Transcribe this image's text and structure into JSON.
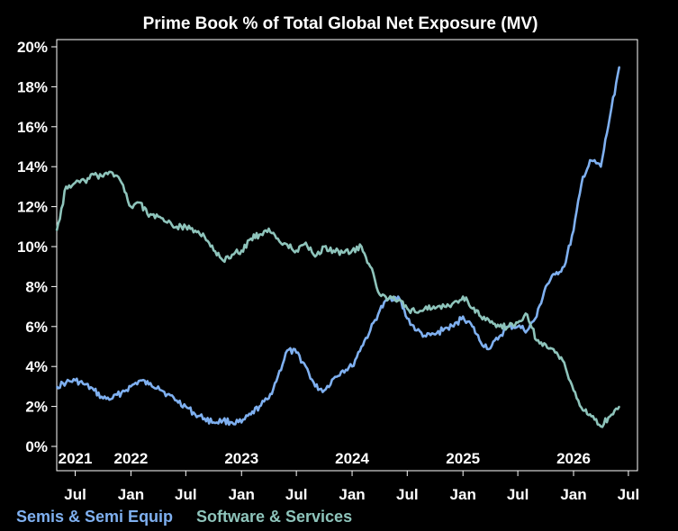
{
  "chart_data": {
    "type": "line",
    "title": "Prime Book % of Total Global Net Exposure (MV)",
    "xlabel": "",
    "ylabel": "",
    "x_range": [
      "2021-05-01",
      "2026-07-31"
    ],
    "ylim": [
      0,
      20
    ],
    "y_ticks": [
      0,
      2,
      4,
      6,
      8,
      10,
      12,
      14,
      16,
      18,
      20
    ],
    "y_tick_labels": [
      "0%",
      "2%",
      "4%",
      "6%",
      "8%",
      "10%",
      "12%",
      "14%",
      "16%",
      "18%",
      "20%"
    ],
    "x_month_ticks": [
      {
        "date": "2021-07-01",
        "label": "Jul"
      },
      {
        "date": "2022-01-01",
        "label": "Jan"
      },
      {
        "date": "2022-07-01",
        "label": "Jul"
      },
      {
        "date": "2023-01-01",
        "label": "Jan"
      },
      {
        "date": "2023-07-01",
        "label": "Jul"
      },
      {
        "date": "2024-01-01",
        "label": "Jan"
      },
      {
        "date": "2024-07-01",
        "label": "Jul"
      },
      {
        "date": "2025-01-01",
        "label": "Jan"
      },
      {
        "date": "2025-07-01",
        "label": "Jul"
      },
      {
        "date": "2026-01-01",
        "label": "Jan"
      },
      {
        "date": "2026-07-01",
        "label": "Jul"
      }
    ],
    "x_year_labels": [
      {
        "date": "2021-07-01",
        "label": "2021"
      },
      {
        "date": "2022-01-01",
        "label": "2022"
      },
      {
        "date": "2023-01-01",
        "label": "2023"
      },
      {
        "date": "2024-01-01",
        "label": "2024"
      },
      {
        "date": "2025-01-01",
        "label": "2025"
      },
      {
        "date": "2026-01-01",
        "label": "2026"
      }
    ],
    "grid": false,
    "legend_position": "bottom-left",
    "series": [
      {
        "name": "Semis & Semi Equip",
        "color": "#7fb0f0",
        "points": [
          [
            "2021-05-01",
            3.0
          ],
          [
            "2021-06-01",
            3.2
          ],
          [
            "2021-07-01",
            3.3
          ],
          [
            "2021-08-01",
            3.1
          ],
          [
            "2021-09-01",
            2.8
          ],
          [
            "2021-10-01",
            2.4
          ],
          [
            "2021-11-01",
            2.4
          ],
          [
            "2021-12-01",
            2.7
          ],
          [
            "2022-01-01",
            3.0
          ],
          [
            "2022-02-01",
            3.3
          ],
          [
            "2022-03-01",
            3.1
          ],
          [
            "2022-04-01",
            3.0
          ],
          [
            "2022-05-01",
            2.6
          ],
          [
            "2022-06-01",
            2.3
          ],
          [
            "2022-07-01",
            2.0
          ],
          [
            "2022-08-01",
            1.6
          ],
          [
            "2022-09-01",
            1.4
          ],
          [
            "2022-10-01",
            1.2
          ],
          [
            "2022-11-01",
            1.3
          ],
          [
            "2022-12-01",
            1.2
          ],
          [
            "2023-01-01",
            1.2
          ],
          [
            "2023-02-01",
            1.6
          ],
          [
            "2023-03-01",
            2.0
          ],
          [
            "2023-04-01",
            2.4
          ],
          [
            "2023-05-01",
            3.5
          ],
          [
            "2023-06-01",
            4.8
          ],
          [
            "2023-07-01",
            4.7
          ],
          [
            "2023-08-01",
            4.0
          ],
          [
            "2023-09-01",
            3.0
          ],
          [
            "2023-10-01",
            2.8
          ],
          [
            "2023-11-01",
            3.4
          ],
          [
            "2023-12-01",
            3.8
          ],
          [
            "2024-01-01",
            4.0
          ],
          [
            "2024-02-01",
            5.0
          ],
          [
            "2024-03-01",
            5.8
          ],
          [
            "2024-04-01",
            6.8
          ],
          [
            "2024-05-01",
            7.4
          ],
          [
            "2024-06-01",
            7.5
          ],
          [
            "2024-07-01",
            6.4
          ],
          [
            "2024-08-01",
            5.8
          ],
          [
            "2024-09-01",
            5.5
          ],
          [
            "2024-10-01",
            5.6
          ],
          [
            "2024-11-01",
            5.9
          ],
          [
            "2024-12-01",
            6.0
          ],
          [
            "2025-01-01",
            6.5
          ],
          [
            "2025-02-01",
            6.0
          ],
          [
            "2025-03-01",
            5.2
          ],
          [
            "2025-04-01",
            4.9
          ],
          [
            "2025-05-01",
            5.5
          ],
          [
            "2025-06-01",
            6.0
          ],
          [
            "2025-07-01",
            6.0
          ],
          [
            "2025-08-01",
            5.8
          ],
          [
            "2025-09-01",
            6.5
          ],
          [
            "2025-10-01",
            8.0
          ],
          [
            "2025-11-01",
            8.6
          ],
          [
            "2025-12-01",
            9.0
          ],
          [
            "2026-01-01",
            10.8
          ],
          [
            "2026-02-01",
            13.5
          ],
          [
            "2026-03-01",
            14.3
          ],
          [
            "2026-04-01",
            14.0
          ],
          [
            "2026-05-01",
            16.5
          ],
          [
            "2026-06-01",
            19.0
          ]
        ]
      },
      {
        "name": "Software & Services",
        "color": "#8ec4bb",
        "points": [
          [
            "2021-05-01",
            10.8
          ],
          [
            "2021-06-01",
            13.0
          ],
          [
            "2021-07-01",
            13.2
          ],
          [
            "2021-08-01",
            13.3
          ],
          [
            "2021-09-01",
            13.6
          ],
          [
            "2021-10-01",
            13.5
          ],
          [
            "2021-11-01",
            13.7
          ],
          [
            "2021-12-01",
            13.2
          ],
          [
            "2022-01-01",
            12.0
          ],
          [
            "2022-02-01",
            12.2
          ],
          [
            "2022-03-01",
            11.5
          ],
          [
            "2022-04-01",
            11.5
          ],
          [
            "2022-05-01",
            11.2
          ],
          [
            "2022-06-01",
            11.0
          ],
          [
            "2022-07-01",
            11.0
          ],
          [
            "2022-08-01",
            10.8
          ],
          [
            "2022-09-01",
            10.5
          ],
          [
            "2022-10-01",
            9.8
          ],
          [
            "2022-11-01",
            9.3
          ],
          [
            "2022-12-01",
            9.6
          ],
          [
            "2023-01-01",
            9.8
          ],
          [
            "2023-02-01",
            10.4
          ],
          [
            "2023-03-01",
            10.6
          ],
          [
            "2023-04-01",
            10.9
          ],
          [
            "2023-05-01",
            10.4
          ],
          [
            "2023-06-01",
            10.1
          ],
          [
            "2023-07-01",
            9.8
          ],
          [
            "2023-08-01",
            10.2
          ],
          [
            "2023-09-01",
            9.5
          ],
          [
            "2023-10-01",
            10.0
          ],
          [
            "2023-11-01",
            9.8
          ],
          [
            "2023-12-01",
            9.7
          ],
          [
            "2024-01-01",
            9.8
          ],
          [
            "2024-02-01",
            10.0
          ],
          [
            "2024-03-01",
            9.0
          ],
          [
            "2024-04-01",
            7.6
          ],
          [
            "2024-05-01",
            7.4
          ],
          [
            "2024-06-01",
            7.3
          ],
          [
            "2024-07-01",
            6.9
          ],
          [
            "2024-08-01",
            6.7
          ],
          [
            "2024-09-01",
            7.0
          ],
          [
            "2024-10-01",
            6.9
          ],
          [
            "2024-11-01",
            7.0
          ],
          [
            "2024-12-01",
            7.2
          ],
          [
            "2025-01-01",
            7.5
          ],
          [
            "2025-02-01",
            6.9
          ],
          [
            "2025-03-01",
            6.5
          ],
          [
            "2025-04-01",
            6.2
          ],
          [
            "2025-05-01",
            6.0
          ],
          [
            "2025-06-01",
            6.0
          ],
          [
            "2025-07-01",
            6.2
          ],
          [
            "2025-08-01",
            6.6
          ],
          [
            "2025-09-01",
            5.3
          ],
          [
            "2025-10-01",
            5.1
          ],
          [
            "2025-11-01",
            4.7
          ],
          [
            "2025-12-01",
            4.2
          ],
          [
            "2026-01-01",
            2.8
          ],
          [
            "2026-02-01",
            1.8
          ],
          [
            "2026-03-01",
            1.5
          ],
          [
            "2026-04-01",
            1.0
          ],
          [
            "2026-05-01",
            1.5
          ],
          [
            "2026-06-01",
            2.0
          ]
        ]
      }
    ]
  }
}
